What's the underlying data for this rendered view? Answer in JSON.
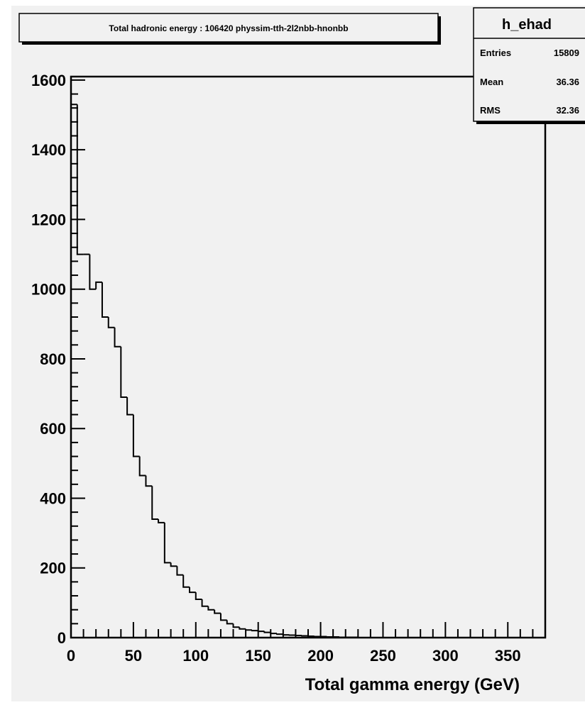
{
  "chart_data": {
    "type": "bar",
    "title": "Total hadronic energy : 106420 physsim-tth-2l2nbb-hnonbb",
    "xlabel": "Total gamma energy (GeV)",
    "ylabel": "",
    "xlim": [
      0,
      380
    ],
    "ylim": [
      0,
      1610
    ],
    "x_ticks": [
      0,
      50,
      100,
      150,
      200,
      250,
      300,
      350
    ],
    "y_ticks": [
      0,
      200,
      400,
      600,
      800,
      1000,
      1200,
      1400,
      1600
    ],
    "bin_width": 5,
    "values": [
      1530,
      1100,
      1100,
      1000,
      1020,
      920,
      890,
      835,
      690,
      640,
      520,
      465,
      435,
      340,
      330,
      215,
      205,
      180,
      145,
      130,
      110,
      90,
      80,
      70,
      50,
      40,
      30,
      25,
      22,
      20,
      18,
      15,
      12,
      10,
      8,
      7,
      6,
      5,
      4,
      3,
      3,
      2,
      2,
      1,
      1,
      1,
      0,
      0,
      0,
      0,
      0,
      0,
      0,
      0,
      0,
      0,
      0,
      0,
      0,
      0,
      0,
      0,
      0,
      0,
      0,
      0,
      0,
      0,
      0,
      0,
      0,
      0,
      0,
      0,
      0,
      0
    ],
    "grid": false,
    "legend": "none"
  },
  "stats_box": {
    "name": "h_ehad",
    "rows": [
      {
        "label": "Entries",
        "value": "15809"
      },
      {
        "label": "Mean",
        "value": "36.36"
      },
      {
        "label": "RMS",
        "value": "32.36"
      }
    ]
  }
}
